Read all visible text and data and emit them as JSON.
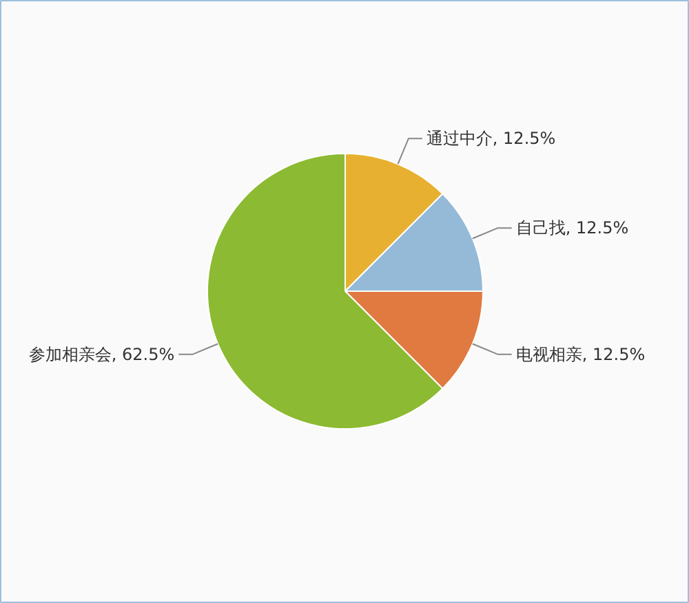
{
  "chart_data": {
    "type": "pie",
    "categories": [
      "通过中介",
      "自己找",
      "电视相亲",
      "参加相亲会"
    ],
    "values": [
      12.5,
      12.5,
      12.5,
      62.5
    ],
    "value_labels": [
      "12.5%",
      "12.5%",
      "12.5%",
      "62.5%"
    ],
    "colors": [
      "#e8b030",
      "#94bad8",
      "#e07a40",
      "#8cba32"
    ]
  }
}
